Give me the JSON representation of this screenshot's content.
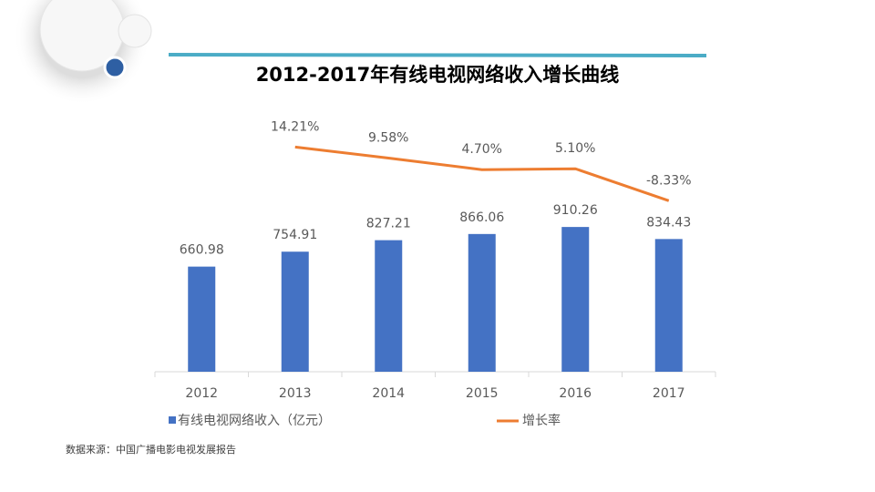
{
  "chart_data": {
    "type": "bar-line",
    "title": "2012-2017年有线电视网络收入增长曲线",
    "categories": [
      "2012",
      "2013",
      "2014",
      "2015",
      "2016",
      "2017"
    ],
    "series": [
      {
        "name": "有线电视网络收入（亿元）",
        "type": "bar",
        "color": "#4472c4",
        "values": [
          660.98,
          754.91,
          827.21,
          866.06,
          910.26,
          834.43
        ]
      },
      {
        "name": "增长率",
        "type": "line",
        "axis": "y2",
        "color": "#ed7d31",
        "values": [
          null,
          14.21,
          9.58,
          4.7,
          5.1,
          -8.33
        ],
        "value_labels": [
          null,
          "14.21%",
          "9.58%",
          "4.70%",
          "5.10%",
          "-8.33%"
        ]
      }
    ],
    "ylim": [
      0,
      1650
    ],
    "y2lim": [
      -80,
      30
    ],
    "legend": "bottom",
    "source": "数据来源：中国广播电影电视发展报告"
  }
}
